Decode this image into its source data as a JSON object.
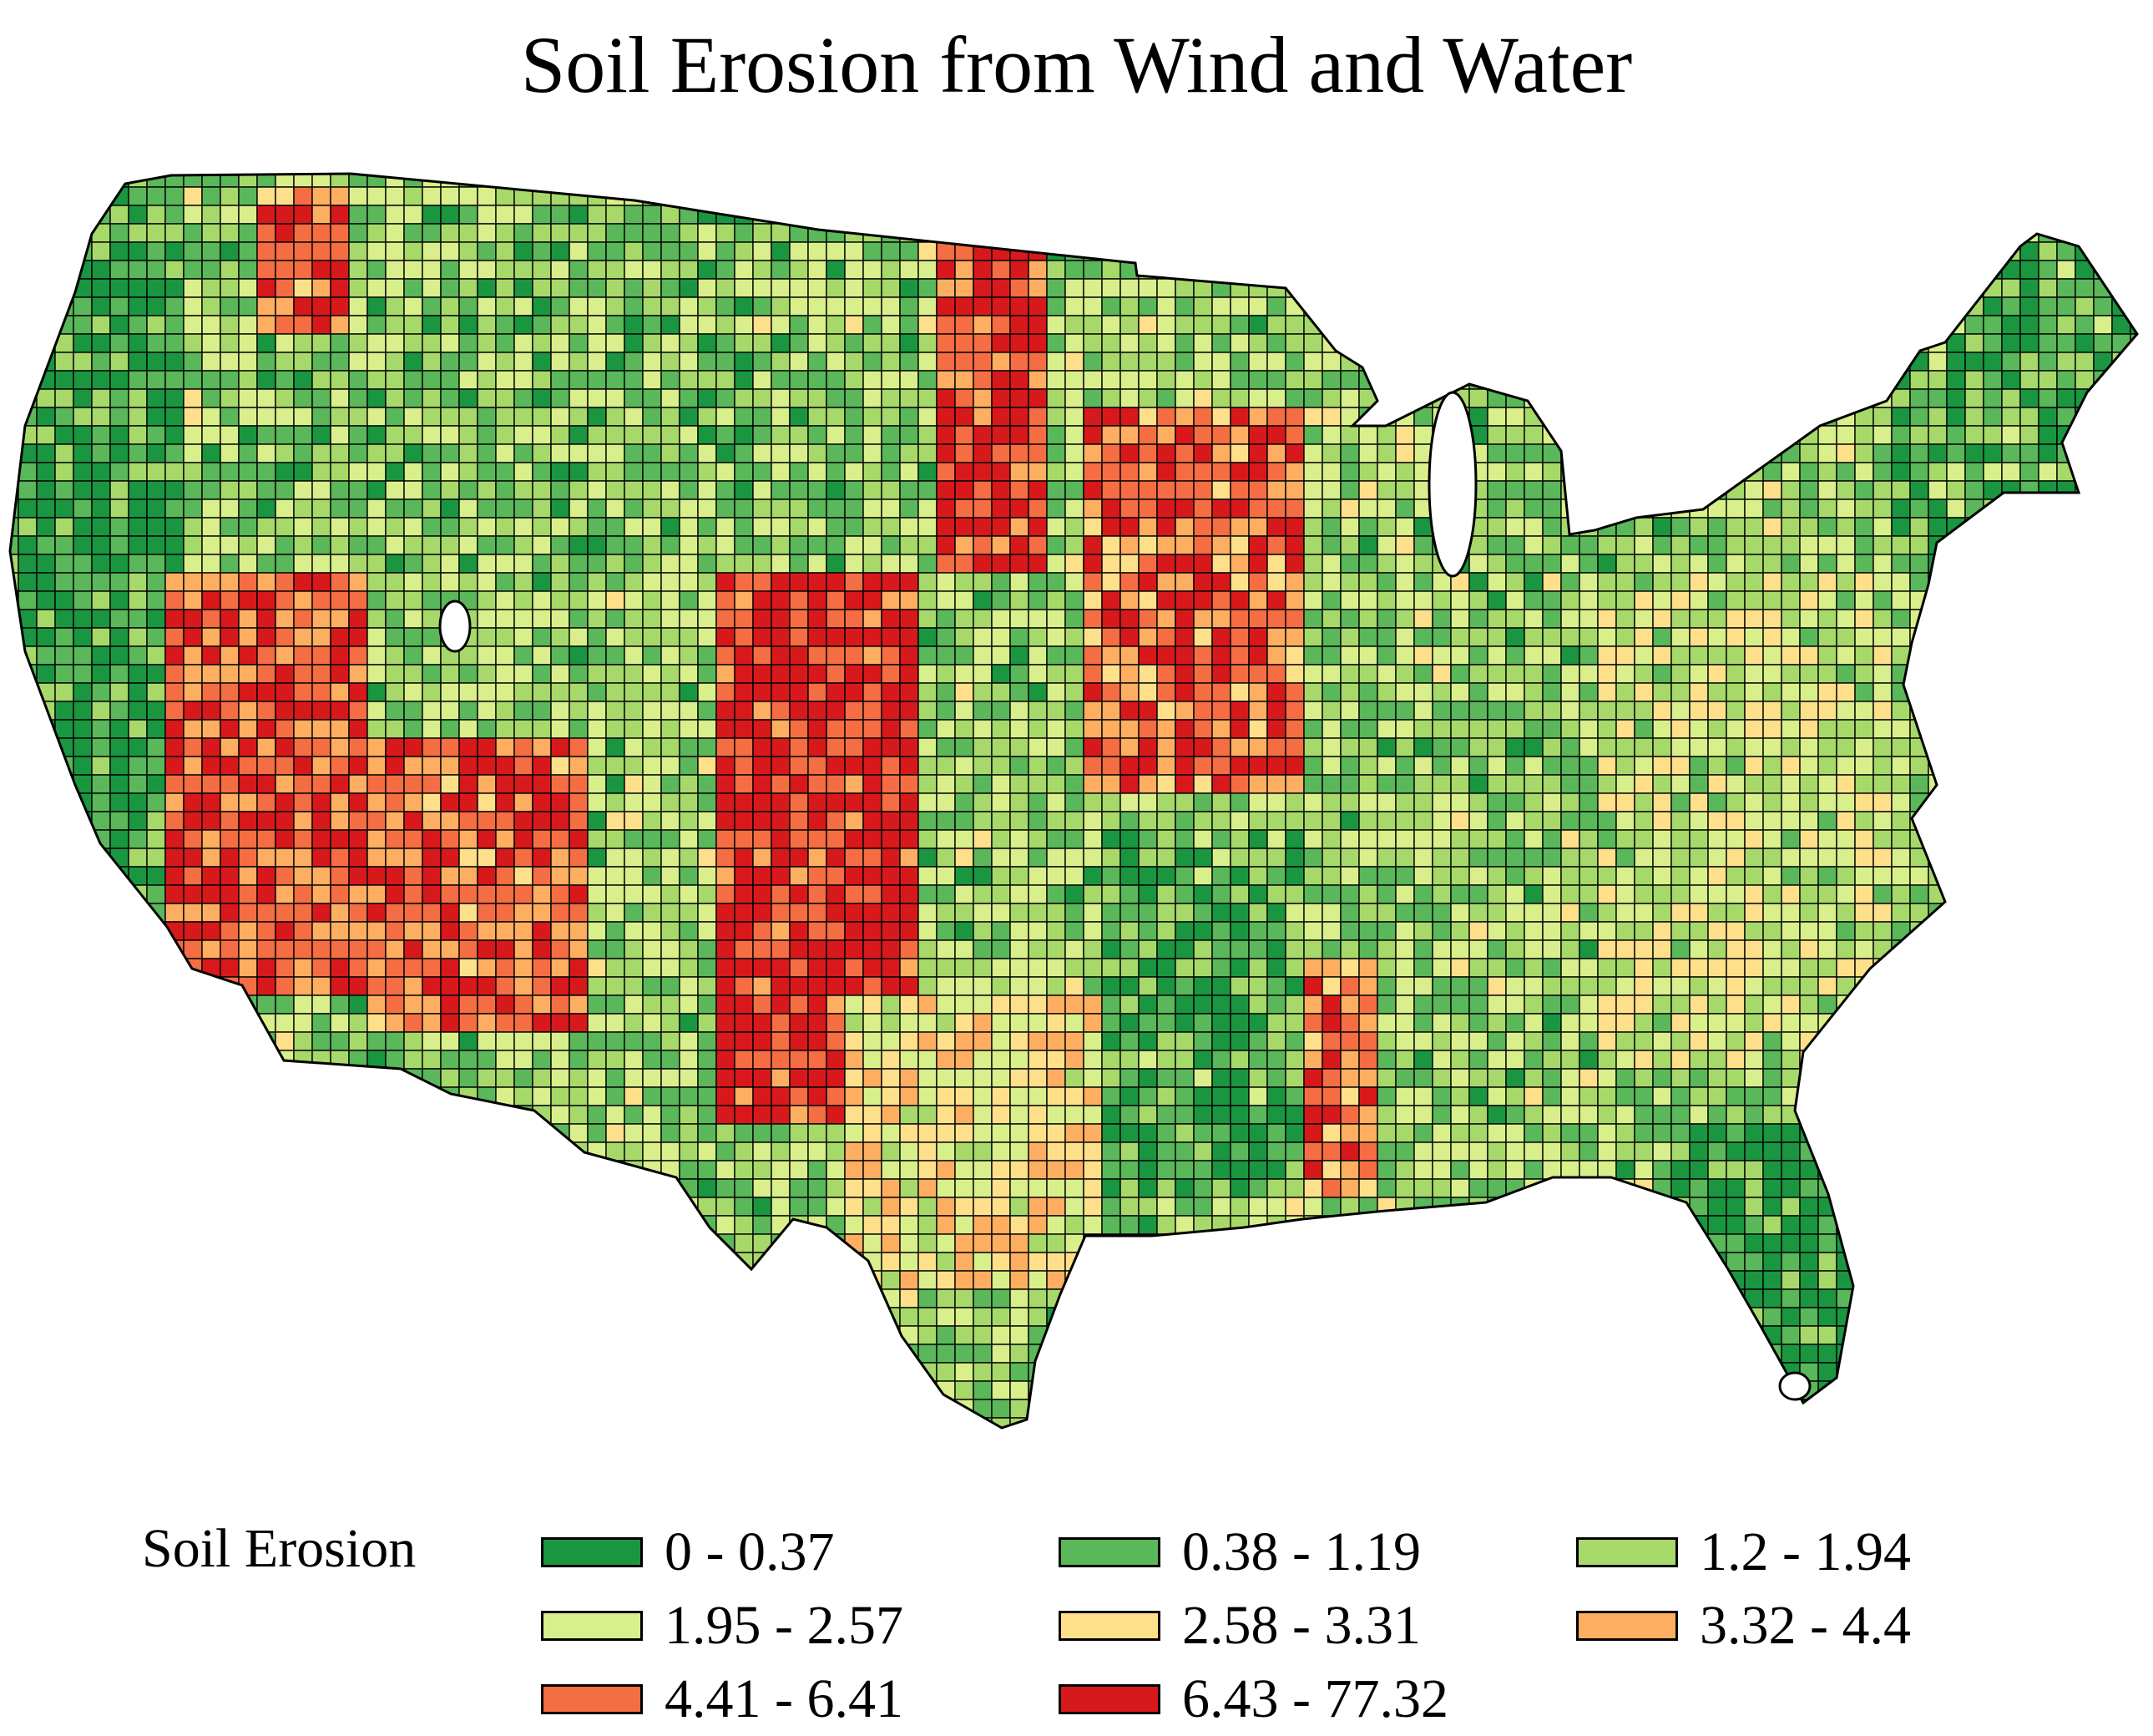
{
  "title": "Soil Erosion from Wind and Water",
  "legend": {
    "title": "Soil Erosion",
    "items": [
      {
        "label": "0 - 0.37",
        "color": "#1a9641"
      },
      {
        "label": "0.38 - 1.19",
        "color": "#5ab75a"
      },
      {
        "label": "1.2 - 1.94",
        "color": "#a6d96a"
      },
      {
        "label": "1.95 - 2.57",
        "color": "#d9ef8b"
      },
      {
        "label": "2.58 - 3.31",
        "color": "#fee08b"
      },
      {
        "label": "3.32 - 4.4",
        "color": "#fdae61"
      },
      {
        "label": "4.41 - 6.41",
        "color": "#f46d43"
      },
      {
        "label": "6.43 - 77.32",
        "color": "#d7191c"
      }
    ]
  }
}
